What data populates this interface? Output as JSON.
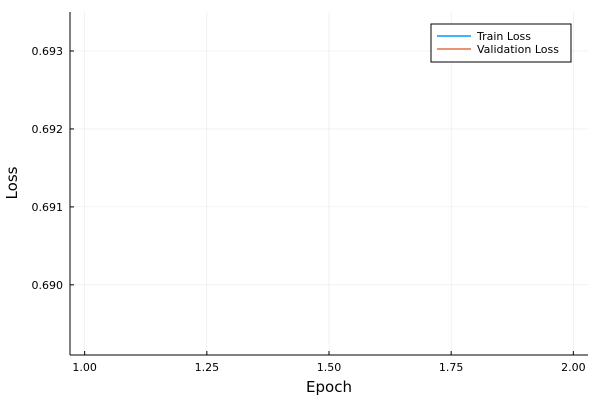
{
  "chart_data": {
    "type": "line",
    "title": "",
    "xlabel": "Epoch",
    "ylabel": "Loss",
    "xlim": [
      0.97,
      2.03
    ],
    "ylim": [
      0.6891,
      0.6935
    ],
    "x_ticks": [
      1.0,
      1.25,
      1.5,
      1.75,
      2.0
    ],
    "x_tick_labels": [
      "1.00",
      "1.25",
      "1.50",
      "1.75",
      "2.00"
    ],
    "y_ticks": [
      0.69,
      0.691,
      0.692,
      0.693
    ],
    "y_tick_labels": [
      "0.690",
      "0.691",
      "0.692",
      "0.693"
    ],
    "grid": true,
    "legend_position": "top-right",
    "series": [
      {
        "name": "Train Loss",
        "color": "#009af9",
        "x": [],
        "y": []
      },
      {
        "name": "Validation Loss",
        "color": "#e26f46",
        "x": [],
        "y": []
      }
    ]
  }
}
